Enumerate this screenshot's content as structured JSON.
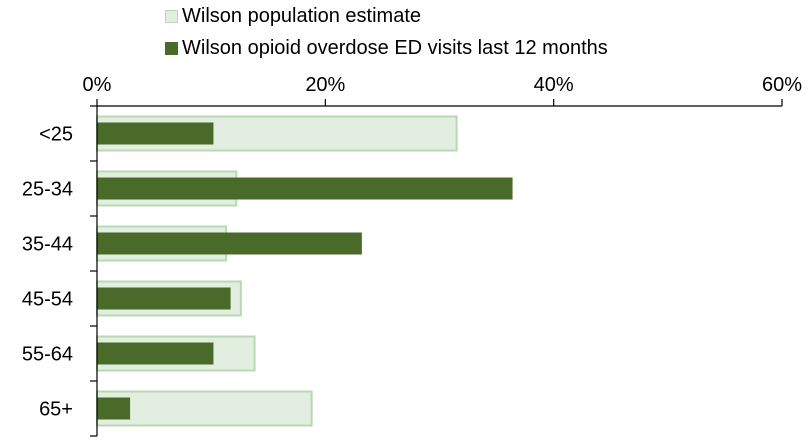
{
  "chart_data": {
    "type": "bar",
    "orientation": "horizontal",
    "title": "",
    "xlabel": "",
    "ylabel": "",
    "categories": [
      "<25",
      "25-34",
      "35-44",
      "45-54",
      "55-64",
      "65+"
    ],
    "series": [
      {
        "name": "Wilson population estimate",
        "values": [
          31.5,
          12.2,
          11.3,
          12.6,
          13.8,
          18.8
        ],
        "color": "#e2efe0",
        "stroke": "#b9d7b5"
      },
      {
        "name": "Wilson opioid overdose ED visits last 12 months",
        "values": [
          10.2,
          36.4,
          23.2,
          11.7,
          10.2,
          2.9
        ],
        "color": "#4a6a2a"
      }
    ],
    "xlim": [
      0,
      60
    ],
    "xticks": [
      "0%",
      "20%",
      "40%",
      "60%"
    ],
    "xtick_values": [
      0,
      20,
      40,
      60
    ],
    "x_axis_position": "top",
    "legend_position": "top",
    "grid": false
  }
}
